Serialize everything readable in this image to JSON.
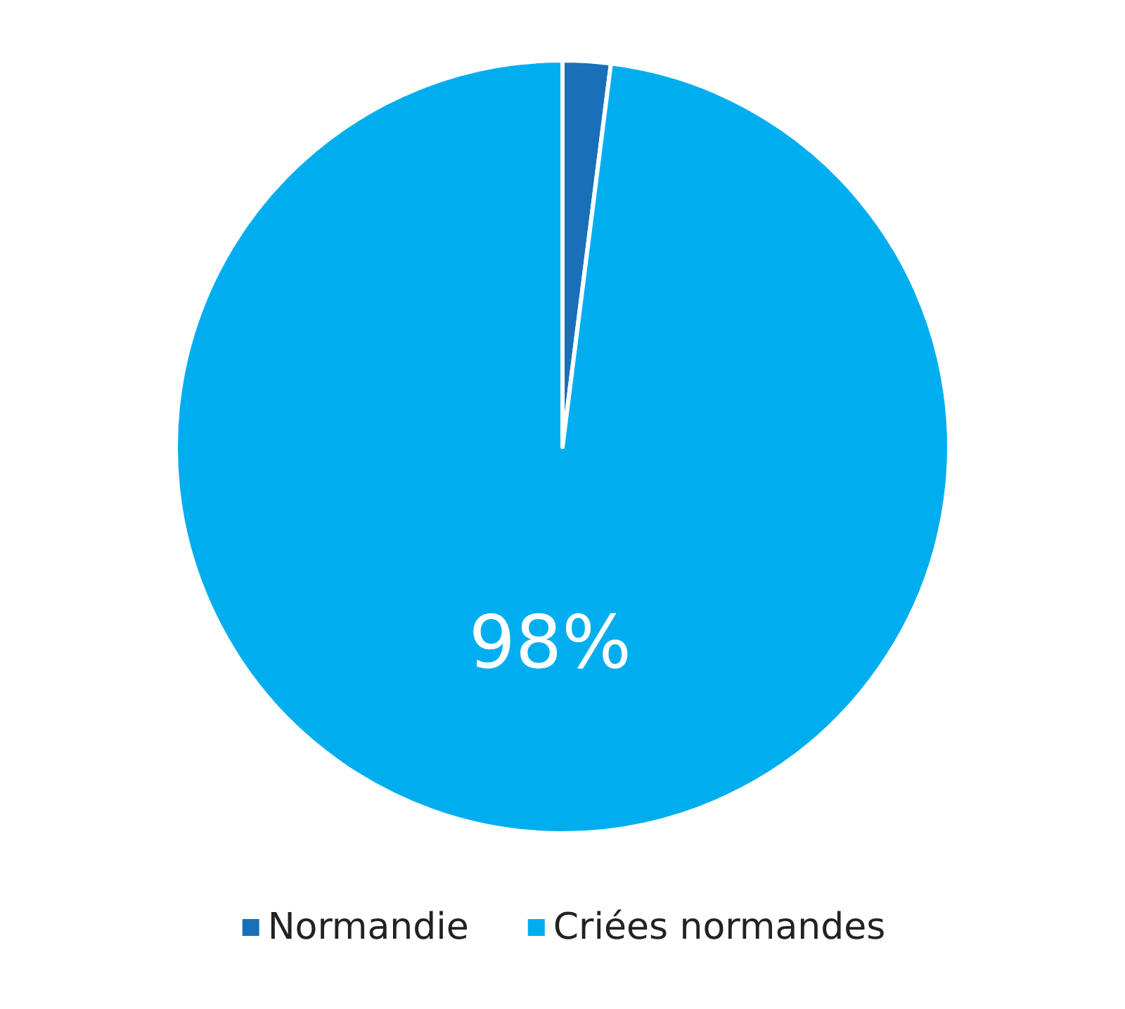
{
  "chart_data": {
    "type": "pie",
    "categories": [
      "Normandie",
      "Criées normandes"
    ],
    "values": [
      2,
      98
    ],
    "colors": [
      "#1a70b8",
      "#00aeef"
    ],
    "value_labels": [
      null,
      "98%"
    ],
    "legend": "bottom"
  }
}
